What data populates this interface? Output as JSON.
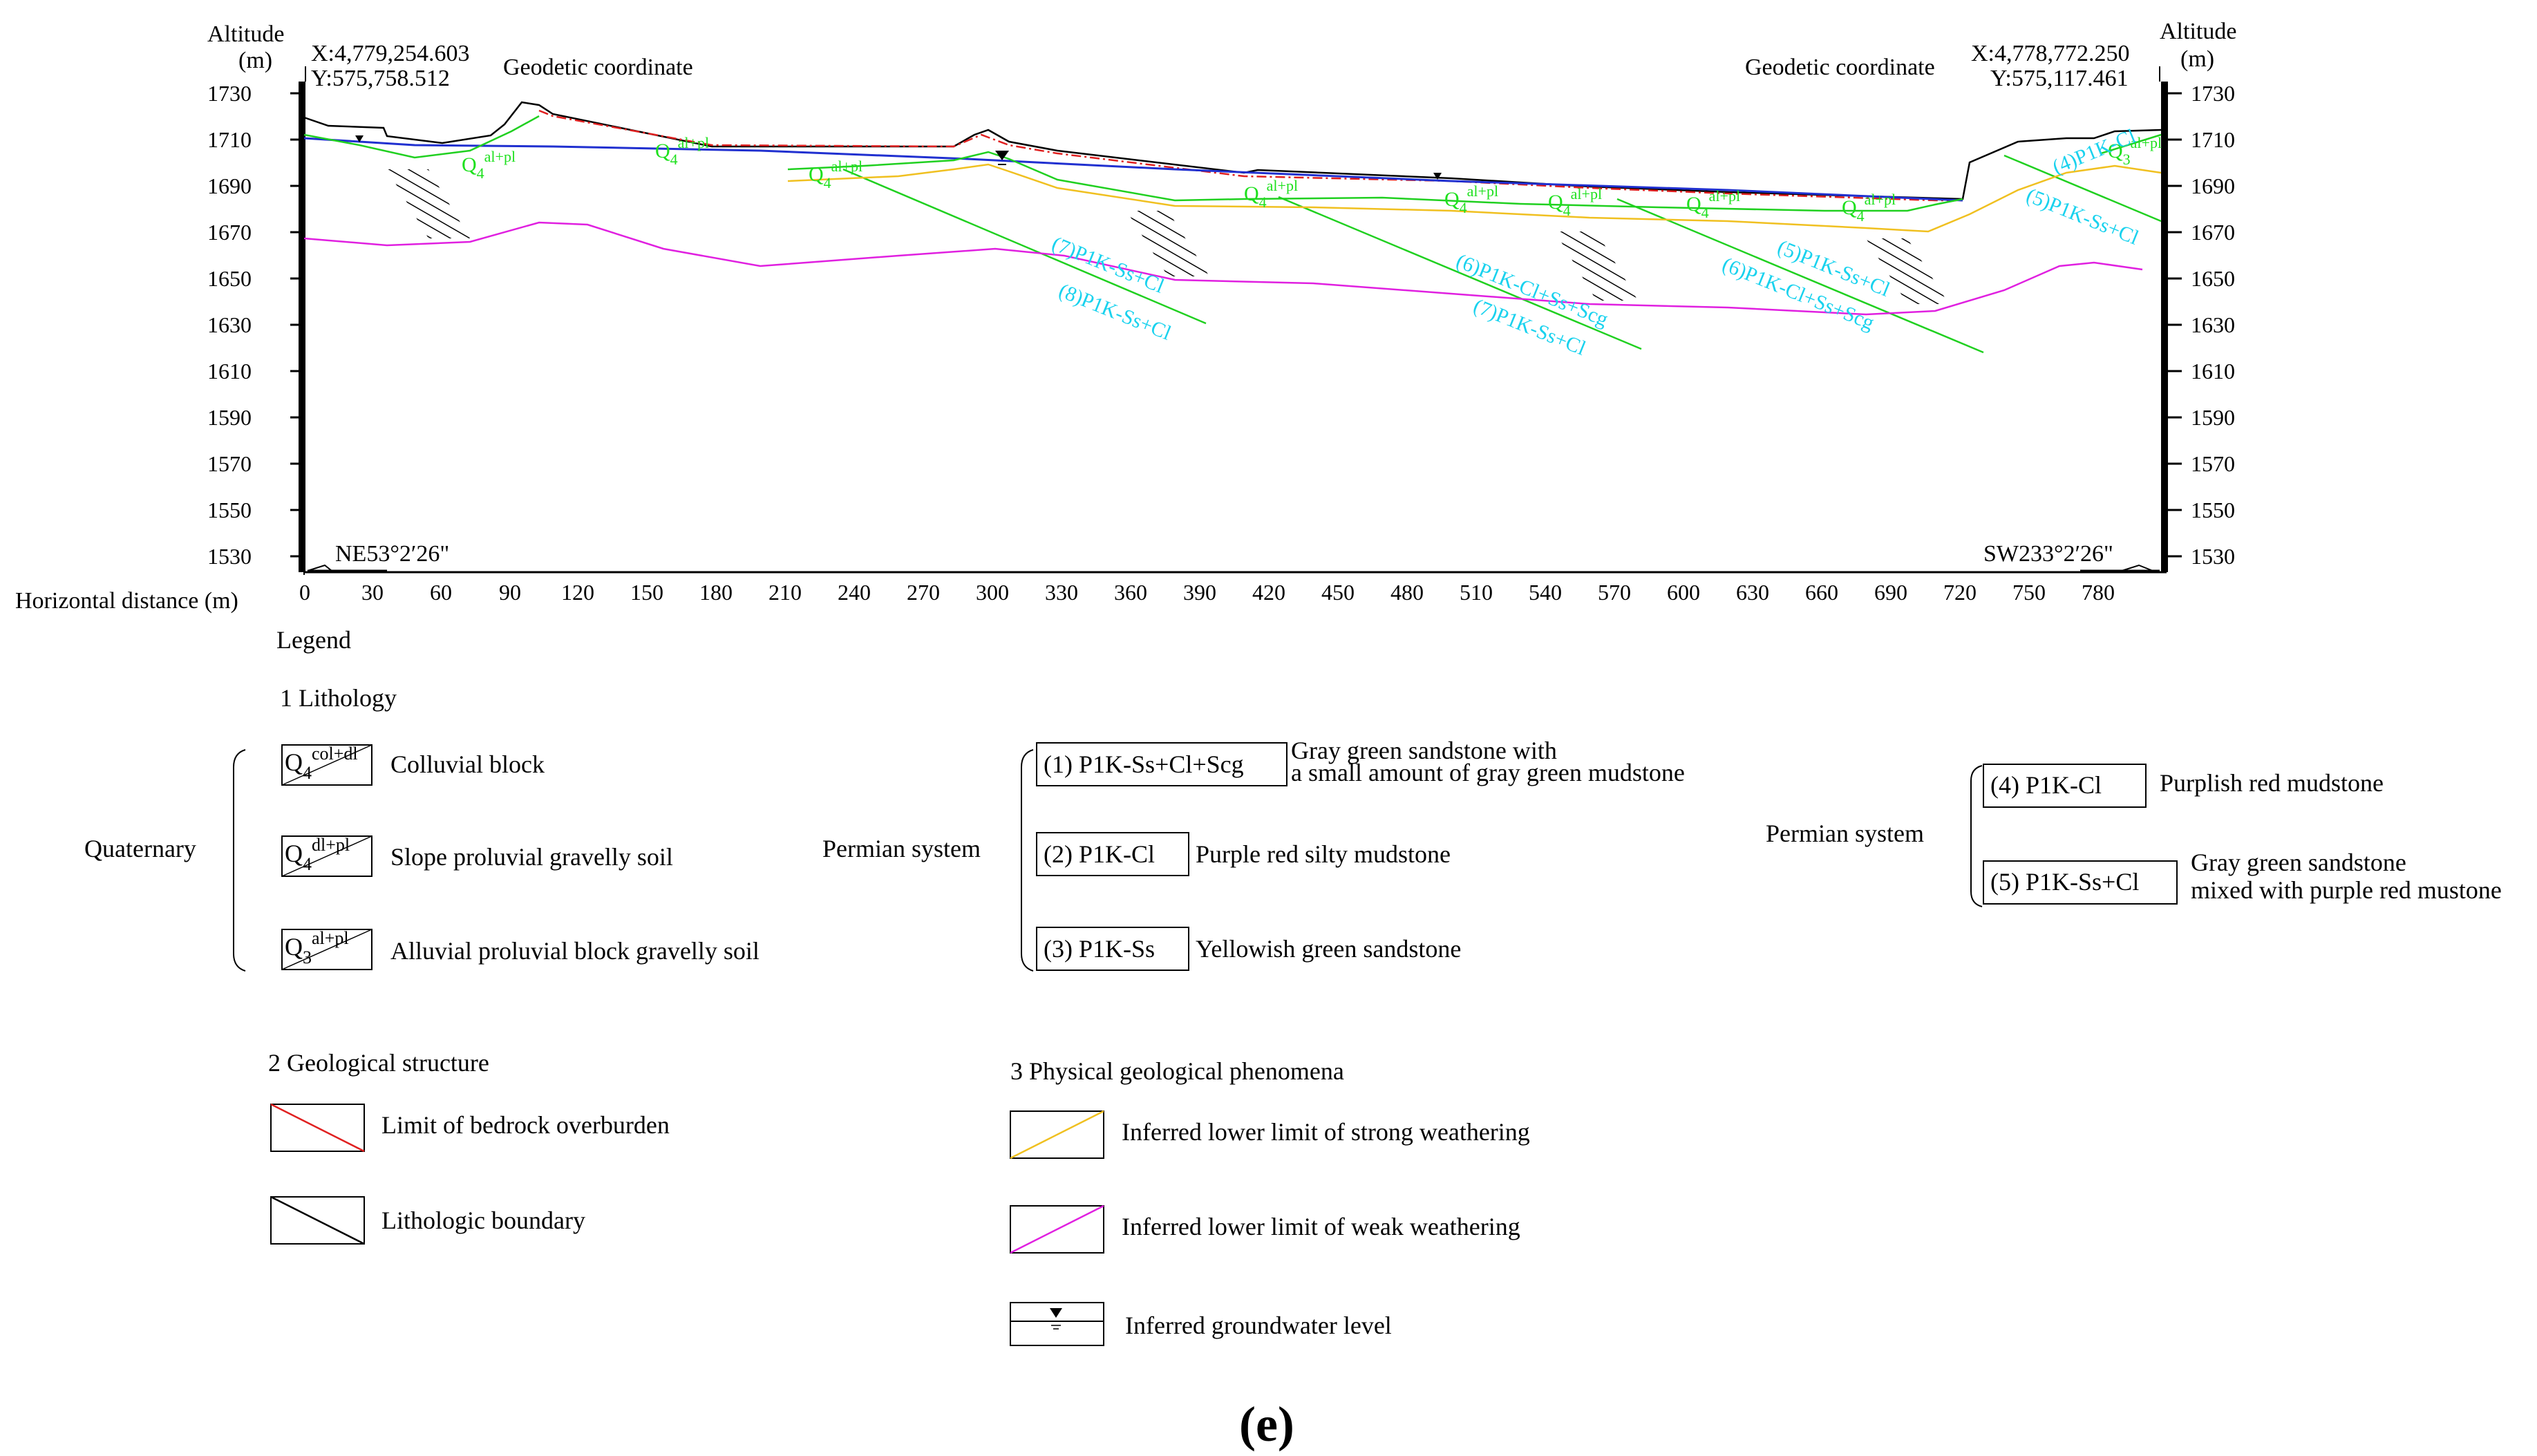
{
  "section": {
    "altitude_label": "Altitude",
    "unit_label": "(m)",
    "coord_left": {
      "x": "X:4,779,254.603",
      "y": "Y:575,758.512"
    },
    "coord_right": {
      "x": "X:4,778,772.250",
      "y": "Y:575,117.461"
    },
    "geodetic_left": "Geodetic coordinate",
    "geodetic_right": "Geodetic coordinate",
    "altitude_ticks": [
      "1730",
      "1710",
      "1690",
      "1670",
      "1650",
      "1630",
      "1610",
      "1590",
      "1570",
      "1550",
      "1530"
    ],
    "distance_label": "Horizontal distance (m)",
    "distance_ticks": [
      "0",
      "30",
      "60",
      "90",
      "120",
      "150",
      "180",
      "210",
      "240",
      "270",
      "300",
      "330",
      "360",
      "390",
      "420",
      "450",
      "480",
      "510",
      "540",
      "570",
      "600",
      "630",
      "660",
      "690",
      "720",
      "750",
      "780"
    ],
    "bearing_left": "NE53°2′26\"",
    "bearing_right": "SW233°2′26\"",
    "q_labels": [
      {
        "base": "Q",
        "sub": "4",
        "sup": "al+pl"
      },
      {
        "base": "Q",
        "sub": "4",
        "sup": "al+pl"
      },
      {
        "base": "Q",
        "sub": "4",
        "sup": "al+pl"
      },
      {
        "base": "Q",
        "sub": "4",
        "sup": "al+pl"
      },
      {
        "base": "Q",
        "sub": "4",
        "sup": "al+pl"
      },
      {
        "base": "Q",
        "sub": "4",
        "sup": "al+pl"
      },
      {
        "base": "Q",
        "sub": "4",
        "sup": "al+pl"
      },
      {
        "base": "Q",
        "sub": "4",
        "sup": "al+pl"
      },
      {
        "base": "Q",
        "sub": "3",
        "sup": "al+pl"
      }
    ],
    "strata_labels": [
      "(4)P1K-Cl",
      "(5)P1K-Ss+Cl",
      "(7)P1K-Ss+Cl",
      "(8)P1K-Ss+Cl",
      "(6)P1K-Cl+Ss+Scg",
      "(7)P1K-Ss+Cl",
      "(5)P1K-Ss+Cl",
      "(6)P1K-Cl+Ss+Scg"
    ]
  },
  "legend": {
    "title": "Legend",
    "lithology_title": "1 Lithology",
    "quaternary": "Quaternary",
    "quaternary_items": [
      {
        "code_base": "Q",
        "code_sub": "4",
        "code_sup": "col+dl",
        "desc": "Colluvial block"
      },
      {
        "code_base": "Q",
        "code_sub": "4",
        "code_sup": "dl+pl",
        "desc": "Slope proluvial gravelly soil"
      },
      {
        "code_base": "Q",
        "code_sub": "3",
        "code_sup": "al+pl",
        "desc": "Alluvial proluvial block gravelly soil"
      }
    ],
    "permian_a": "Permian system",
    "permian_a_items": [
      {
        "code": "(1) P1K-Ss+Cl+Scg",
        "desc1": "Gray green sandstone with",
        "desc2": "a small amount of gray green mudstone"
      },
      {
        "code": "(2) P1K-Cl",
        "desc1": "Purple red silty mudstone",
        "desc2": ""
      },
      {
        "code": "(3) P1K-Ss",
        "desc1": "Yellowish green sandstone",
        "desc2": ""
      }
    ],
    "permian_b": "Permian system",
    "permian_b_items": [
      {
        "code": "(4) P1K-Cl",
        "desc1": "Purplish red mudstone",
        "desc2": ""
      },
      {
        "code": "(5) P1K-Ss+Cl",
        "desc1": "Gray green sandstone",
        "desc2": "mixed with purple red mustone"
      }
    ],
    "structure_title": "2 Geological structure",
    "structure_items": [
      {
        "desc": "Limit of bedrock overburden",
        "color": "#e02020"
      },
      {
        "desc": "Lithologic boundary",
        "color": "#000000"
      }
    ],
    "phenomena_title": "3 Physical geological phenomena",
    "phenomena_items": [
      {
        "desc": "Inferred lower limit of strong weathering",
        "color": "#f0c020"
      },
      {
        "desc": "Inferred lower limit of weak weathering",
        "color": "#e020e0"
      },
      {
        "desc": "Inferred groundwater level",
        "color": "#000000"
      }
    ]
  },
  "caption": "(e)"
}
